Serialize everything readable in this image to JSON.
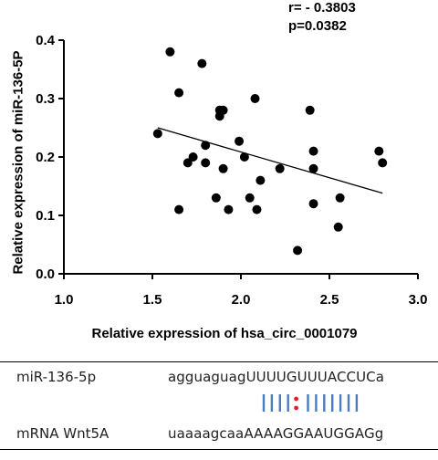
{
  "chart_data": {
    "type": "scatter",
    "xlabel": "Relative expression of hsa_circ_0001079",
    "ylabel": "Relative expression of miR-136-5P",
    "xlim": [
      1.0,
      3.0
    ],
    "ylim": [
      0.0,
      0.4
    ],
    "x_ticks": [
      "1.0",
      "1.5",
      "2.0",
      "2.5",
      "3.0"
    ],
    "y_ticks": [
      "0.0",
      "0.1",
      "0.2",
      "0.3",
      "0.4"
    ],
    "points": [
      {
        "x": 1.53,
        "y": 0.24
      },
      {
        "x": 1.6,
        "y": 0.38
      },
      {
        "x": 1.65,
        "y": 0.31
      },
      {
        "x": 1.65,
        "y": 0.11
      },
      {
        "x": 1.7,
        "y": 0.19
      },
      {
        "x": 1.73,
        "y": 0.2
      },
      {
        "x": 1.78,
        "y": 0.36
      },
      {
        "x": 1.8,
        "y": 0.22
      },
      {
        "x": 1.8,
        "y": 0.19
      },
      {
        "x": 1.86,
        "y": 0.13
      },
      {
        "x": 1.88,
        "y": 0.27
      },
      {
        "x": 1.88,
        "y": 0.28
      },
      {
        "x": 1.9,
        "y": 0.28
      },
      {
        "x": 1.9,
        "y": 0.18
      },
      {
        "x": 1.93,
        "y": 0.11
      },
      {
        "x": 1.99,
        "y": 0.227
      },
      {
        "x": 2.02,
        "y": 0.2
      },
      {
        "x": 2.05,
        "y": 0.13
      },
      {
        "x": 2.08,
        "y": 0.3
      },
      {
        "x": 2.09,
        "y": 0.11
      },
      {
        "x": 2.11,
        "y": 0.16
      },
      {
        "x": 2.22,
        "y": 0.18
      },
      {
        "x": 2.32,
        "y": 0.04
      },
      {
        "x": 2.39,
        "y": 0.28
      },
      {
        "x": 2.41,
        "y": 0.21
      },
      {
        "x": 2.41,
        "y": 0.18
      },
      {
        "x": 2.41,
        "y": 0.12
      },
      {
        "x": 2.55,
        "y": 0.08
      },
      {
        "x": 2.56,
        "y": 0.13
      },
      {
        "x": 2.78,
        "y": 0.21
      },
      {
        "x": 2.8,
        "y": 0.19
      }
    ],
    "regression_line": {
      "x": [
        1.53,
        2.8
      ],
      "y": [
        0.25,
        0.138
      ]
    },
    "annotations": [
      "r= - 0.3803",
      "p=0.0382"
    ],
    "grid": false,
    "legend": "none"
  },
  "alignment": {
    "rows": [
      {
        "name": "miR-136-5p",
        "sequence": "agguaguagUUUUGUUUACCUCa"
      },
      {
        "name": "mRNA Wnt5A",
        "sequence": "uaaaagcaaAAAAGGAAUGGAGg"
      }
    ],
    "pairing": "||||:|||||||",
    "pair_color": "#4a7cc4",
    "mismatch_color": "#e0202a"
  }
}
